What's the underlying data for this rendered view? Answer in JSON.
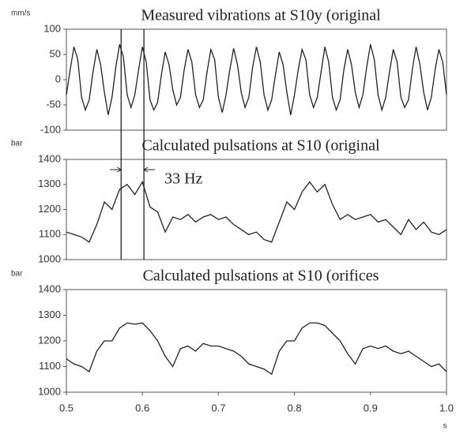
{
  "chart_data": [
    {
      "type": "line",
      "title": "Measured vibrations at S10y (original",
      "ylabel": "mm/s",
      "color": "#222",
      "xlim": [
        0.5,
        1.0
      ],
      "ylim": [
        -100,
        100
      ],
      "yticks": [
        -100,
        -50,
        0,
        50,
        100
      ],
      "x": [
        0.5,
        0.505,
        0.51,
        0.515,
        0.52,
        0.525,
        0.53,
        0.535,
        0.54,
        0.545,
        0.55,
        0.555,
        0.56,
        0.565,
        0.57,
        0.575,
        0.58,
        0.585,
        0.59,
        0.595,
        0.6,
        0.605,
        0.61,
        0.615,
        0.62,
        0.625,
        0.63,
        0.635,
        0.64,
        0.645,
        0.65,
        0.655,
        0.66,
        0.665,
        0.67,
        0.675,
        0.68,
        0.685,
        0.69,
        0.695,
        0.7,
        0.705,
        0.71,
        0.715,
        0.72,
        0.725,
        0.73,
        0.735,
        0.74,
        0.745,
        0.75,
        0.755,
        0.76,
        0.765,
        0.77,
        0.775,
        0.78,
        0.785,
        0.79,
        0.795,
        0.8,
        0.805,
        0.81,
        0.815,
        0.82,
        0.825,
        0.83,
        0.835,
        0.84,
        0.845,
        0.85,
        0.855,
        0.86,
        0.865,
        0.87,
        0.875,
        0.88,
        0.885,
        0.89,
        0.895,
        0.9,
        0.905,
        0.91,
        0.915,
        0.92,
        0.925,
        0.93,
        0.935,
        0.94,
        0.945,
        0.95,
        0.955,
        0.96,
        0.965,
        0.97,
        0.975,
        0.98,
        0.985,
        0.99,
        0.995,
        1.0
      ],
      "values": [
        -30,
        20,
        65,
        40,
        -35,
        -60,
        -40,
        15,
        60,
        30,
        -25,
        -70,
        -35,
        25,
        70,
        45,
        -30,
        -55,
        -30,
        20,
        65,
        35,
        -40,
        -60,
        -45,
        10,
        55,
        30,
        -20,
        -50,
        -35,
        20,
        60,
        35,
        -30,
        -55,
        -40,
        15,
        60,
        40,
        -35,
        -65,
        -30,
        20,
        62,
        30,
        -25,
        -55,
        -35,
        25,
        65,
        35,
        -30,
        -60,
        -40,
        10,
        55,
        30,
        -25,
        -70,
        -30,
        20,
        60,
        40,
        -30,
        -55,
        -35,
        15,
        65,
        35,
        -35,
        -60,
        -40,
        20,
        60,
        30,
        -25,
        -55,
        -30,
        25,
        70,
        40,
        -30,
        -60,
        -35,
        15,
        60,
        35,
        -35,
        -55,
        -40,
        20,
        65,
        30,
        -25,
        -60,
        -35,
        20,
        60,
        35,
        -30
      ]
    },
    {
      "type": "line",
      "title": "Calculated pulsations at S10 (original",
      "ylabel": "bar",
      "color": "#222",
      "xlim": [
        0.5,
        1.0
      ],
      "ylim": [
        1000,
        1400
      ],
      "yticks": [
        1000,
        1100,
        1200,
        1300,
        1400
      ],
      "annotation": {
        "text": "33 Hz",
        "x": [
          0.572,
          0.602
        ]
      },
      "x": [
        0.5,
        0.51,
        0.52,
        0.53,
        0.54,
        0.55,
        0.56,
        0.57,
        0.58,
        0.59,
        0.6,
        0.61,
        0.62,
        0.63,
        0.64,
        0.65,
        0.66,
        0.67,
        0.68,
        0.69,
        0.7,
        0.71,
        0.72,
        0.73,
        0.74,
        0.75,
        0.76,
        0.77,
        0.78,
        0.79,
        0.8,
        0.81,
        0.82,
        0.83,
        0.84,
        0.85,
        0.86,
        0.87,
        0.88,
        0.89,
        0.9,
        0.91,
        0.92,
        0.93,
        0.94,
        0.95,
        0.96,
        0.97,
        0.98,
        0.99,
        1.0
      ],
      "values": [
        1110,
        1100,
        1090,
        1070,
        1140,
        1230,
        1200,
        1280,
        1300,
        1260,
        1310,
        1210,
        1190,
        1110,
        1170,
        1160,
        1180,
        1150,
        1170,
        1180,
        1160,
        1170,
        1140,
        1120,
        1100,
        1110,
        1080,
        1070,
        1150,
        1230,
        1200,
        1270,
        1310,
        1270,
        1300,
        1220,
        1160,
        1180,
        1160,
        1170,
        1180,
        1150,
        1160,
        1130,
        1100,
        1160,
        1120,
        1150,
        1110,
        1100,
        1120
      ]
    },
    {
      "type": "line",
      "title": "Calculated pulsations at S10 (orifices",
      "ylabel": "bar",
      "xlabel": "s",
      "color": "#222",
      "xlim": [
        0.5,
        1.0
      ],
      "ylim": [
        1000,
        1400
      ],
      "yticks": [
        1000,
        1100,
        1200,
        1300,
        1400
      ],
      "xticks": [
        0.5,
        0.6,
        0.7,
        0.8,
        0.9,
        {
          "value": 1,
          "label": "1.0"
        }
      ],
      "x": [
        0.5,
        0.51,
        0.52,
        0.53,
        0.54,
        0.55,
        0.56,
        0.57,
        0.58,
        0.59,
        0.6,
        0.61,
        0.62,
        0.63,
        0.64,
        0.65,
        0.66,
        0.67,
        0.68,
        0.69,
        0.7,
        0.71,
        0.72,
        0.73,
        0.74,
        0.75,
        0.76,
        0.77,
        0.78,
        0.79,
        0.8,
        0.81,
        0.82,
        0.83,
        0.84,
        0.85,
        0.86,
        0.87,
        0.88,
        0.89,
        0.9,
        0.91,
        0.92,
        0.93,
        0.94,
        0.95,
        0.96,
        0.97,
        0.98,
        0.99,
        1.0
      ],
      "values": [
        1130,
        1110,
        1100,
        1080,
        1160,
        1200,
        1200,
        1250,
        1270,
        1265,
        1270,
        1240,
        1200,
        1140,
        1100,
        1170,
        1180,
        1160,
        1190,
        1180,
        1180,
        1170,
        1160,
        1140,
        1110,
        1100,
        1090,
        1070,
        1160,
        1200,
        1200,
        1250,
        1270,
        1270,
        1260,
        1230,
        1200,
        1150,
        1110,
        1170,
        1180,
        1170,
        1180,
        1160,
        1150,
        1160,
        1140,
        1120,
        1100,
        1110,
        1080
      ]
    }
  ]
}
